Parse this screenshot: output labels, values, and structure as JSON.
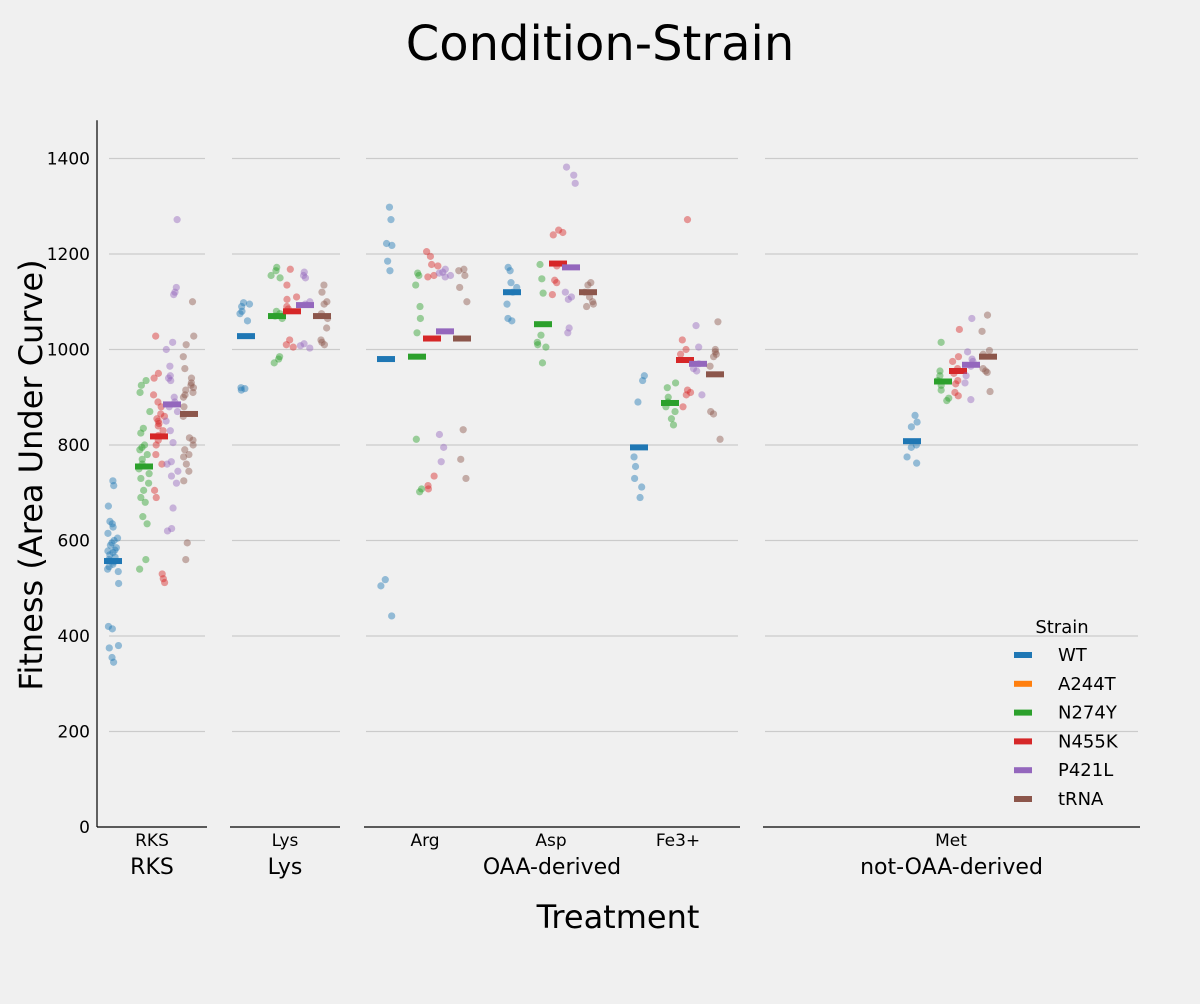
{
  "chart_data": {
    "type": "scatter",
    "title": "Condition-Strain",
    "xlabel": "Treatment",
    "ylabel": "Fitness (Area Under Curve)",
    "ylim": [
      0,
      1480
    ],
    "yticks": [
      0,
      200,
      400,
      600,
      800,
      1000,
      1200,
      1400
    ],
    "grid": true,
    "legend": {
      "title": "Strain",
      "placement": "bottom-right",
      "entries": [
        "WT",
        "A244T",
        "N274Y",
        "N455K",
        "P421L",
        "tRNA"
      ]
    },
    "strain_colors": {
      "WT": "#1f77b4",
      "A244T": "#ff7f0e",
      "N274Y": "#2ca02c",
      "N455K": "#d62728",
      "P421L": "#9467bd",
      "tRNA": "#8c564b"
    },
    "groups": [
      {
        "name": "RKS",
        "categories": [
          "RKS"
        ]
      },
      {
        "name": "Lys",
        "categories": [
          "Lys"
        ]
      },
      {
        "name": "OAA-derived",
        "categories": [
          "Arg",
          "Asp",
          "Fe3+"
        ]
      },
      {
        "name": "not-OAA-derived",
        "categories": [
          "Met"
        ]
      }
    ],
    "series": [
      {
        "category": "RKS",
        "strain": "WT",
        "mean": 557,
        "values": [
          725,
          715,
          672,
          640,
          635,
          628,
          615,
          605,
          600,
          595,
          590,
          585,
          580,
          578,
          575,
          570,
          565,
          560,
          555,
          550,
          545,
          540,
          535,
          510,
          420,
          415,
          380,
          375,
          355,
          345
        ]
      },
      {
        "category": "RKS",
        "strain": "N274Y",
        "mean": 755,
        "values": [
          935,
          925,
          910,
          870,
          835,
          825,
          800,
          795,
          790,
          780,
          770,
          760,
          750,
          740,
          730,
          720,
          705,
          690,
          680,
          650,
          635,
          560,
          540
        ]
      },
      {
        "category": "RKS",
        "strain": "N455K",
        "mean": 818,
        "values": [
          1028,
          950,
          940,
          905,
          890,
          880,
          865,
          860,
          855,
          850,
          845,
          840,
          830,
          820,
          810,
          800,
          780,
          760,
          705,
          690,
          530,
          520,
          512
        ]
      },
      {
        "category": "RKS",
        "strain": "P421L",
        "mean": 885,
        "values": [
          1272,
          1130,
          1120,
          1115,
          1015,
          1000,
          965,
          945,
          940,
          935,
          900,
          890,
          880,
          870,
          850,
          830,
          805,
          765,
          760,
          745,
          735,
          720,
          668,
          625,
          620
        ]
      },
      {
        "category": "RKS",
        "strain": "tRNA",
        "mean": 865,
        "values": [
          1100,
          1028,
          1010,
          985,
          960,
          940,
          930,
          925,
          920,
          915,
          910,
          905,
          900,
          880,
          860,
          815,
          810,
          800,
          790,
          780,
          775,
          760,
          745,
          725,
          595,
          560
        ]
      },
      {
        "category": "Lys",
        "strain": "WT",
        "mean": 1028,
        "values": [
          1098,
          1095,
          1090,
          1080,
          1075,
          1060,
          920,
          918,
          915
        ]
      },
      {
        "category": "Lys",
        "strain": "N274Y",
        "mean": 1070,
        "values": [
          1172,
          1165,
          1155,
          1150,
          1080,
          1075,
          1070,
          1065,
          985,
          980,
          972
        ]
      },
      {
        "category": "Lys",
        "strain": "N455K",
        "mean": 1080,
        "values": [
          1168,
          1135,
          1110,
          1105,
          1090,
          1085,
          1020,
          1010,
          1005
        ]
      },
      {
        "category": "Lys",
        "strain": "P421L",
        "mean": 1093,
        "values": [
          1162,
          1155,
          1150,
          1100,
          1095,
          1012,
          1008,
          1003
        ]
      },
      {
        "category": "Lys",
        "strain": "tRNA",
        "mean": 1070,
        "values": [
          1135,
          1120,
          1100,
          1095,
          1075,
          1065,
          1045,
          1020,
          1015,
          1010
        ]
      },
      {
        "category": "Arg",
        "strain": "WT",
        "mean": 980,
        "values": [
          1298,
          1272,
          1222,
          1218,
          1185,
          1165,
          518,
          505,
          442
        ]
      },
      {
        "category": "Arg",
        "strain": "N274Y",
        "mean": 985,
        "values": [
          1160,
          1155,
          1135,
          1090,
          1065,
          1035,
          812,
          708,
          702
        ]
      },
      {
        "category": "Arg",
        "strain": "N455K",
        "mean": 1023,
        "values": [
          1205,
          1195,
          1178,
          1175,
          1155,
          1152,
          735,
          715,
          708
        ]
      },
      {
        "category": "Arg",
        "strain": "P421L",
        "mean": 1038,
        "values": [
          1168,
          1162,
          1160,
          1155,
          1152,
          822,
          795,
          765
        ]
      },
      {
        "category": "Arg",
        "strain": "tRNA",
        "mean": 1023,
        "values": [
          1168,
          1165,
          1155,
          1130,
          1100,
          832,
          770,
          730
        ]
      },
      {
        "category": "Asp",
        "strain": "WT",
        "mean": 1120,
        "values": [
          1172,
          1165,
          1140,
          1130,
          1120,
          1095,
          1065,
          1060
        ]
      },
      {
        "category": "Asp",
        "strain": "N274Y",
        "mean": 1053,
        "values": [
          1178,
          1148,
          1118,
          1030,
          1015,
          1010,
          1005,
          972
        ]
      },
      {
        "category": "Asp",
        "strain": "N455K",
        "mean": 1180,
        "values": [
          1250,
          1245,
          1240,
          1175,
          1145,
          1140,
          1115
        ]
      },
      {
        "category": "Asp",
        "strain": "P421L",
        "mean": 1172,
        "values": [
          1382,
          1365,
          1348,
          1120,
          1110,
          1105,
          1045,
          1035
        ]
      },
      {
        "category": "Asp",
        "strain": "tRNA",
        "mean": 1120,
        "values": [
          1140,
          1135,
          1120,
          1110,
          1100,
          1095,
          1090
        ]
      },
      {
        "category": "Fe3+",
        "strain": "WT",
        "mean": 795,
        "values": [
          945,
          935,
          890,
          775,
          755,
          730,
          712,
          690
        ]
      },
      {
        "category": "Fe3+",
        "strain": "N274Y",
        "mean": 888,
        "values": [
          930,
          920,
          900,
          890,
          880,
          870,
          855,
          842
        ]
      },
      {
        "category": "Fe3+",
        "strain": "N455K",
        "mean": 978,
        "values": [
          1272,
          1020,
          1000,
          990,
          915,
          910,
          905,
          880
        ]
      },
      {
        "category": "Fe3+",
        "strain": "P421L",
        "mean": 970,
        "values": [
          1050,
          1005,
          970,
          960,
          955,
          905
        ]
      },
      {
        "category": "Fe3+",
        "strain": "tRNA",
        "mean": 948,
        "values": [
          1058,
          1000,
          995,
          990,
          985,
          965,
          870,
          865,
          812
        ]
      },
      {
        "category": "Met",
        "strain": "WT",
        "mean": 808,
        "values": [
          862,
          848,
          838,
          800,
          795,
          775,
          762
        ]
      },
      {
        "category": "Met",
        "strain": "N274Y",
        "mean": 933,
        "values": [
          1015,
          955,
          945,
          935,
          925,
          915,
          898,
          893
        ]
      },
      {
        "category": "Met",
        "strain": "N455K",
        "mean": 955,
        "values": [
          1042,
          985,
          975,
          960,
          950,
          935,
          928,
          910,
          903
        ]
      },
      {
        "category": "Met",
        "strain": "P421L",
        "mean": 968,
        "values": [
          1065,
          995,
          980,
          975,
          965,
          945,
          930,
          895
        ]
      },
      {
        "category": "Met",
        "strain": "tRNA",
        "mean": 985,
        "values": [
          1072,
          1038,
          998,
          990,
          960,
          955,
          952,
          912
        ]
      }
    ]
  }
}
